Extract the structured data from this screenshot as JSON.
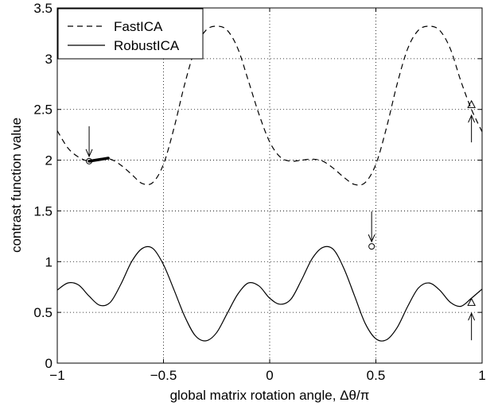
{
  "chart_data": {
    "type": "line",
    "title": "",
    "xlabel": "global matrix rotation angle, Δθ/π",
    "ylabel": "contrast function value",
    "xlim": [
      -1,
      1
    ],
    "ylim": [
      0,
      3.5
    ],
    "xticks": [
      -1,
      -0.5,
      0,
      0.5,
      1
    ],
    "xtick_labels": [
      "−1",
      "−0.5",
      "0",
      "0.5",
      "1"
    ],
    "yticks": [
      0,
      0.5,
      1,
      1.5,
      2,
      2.5,
      3,
      3.5
    ],
    "ytick_labels": [
      "0",
      "0.5",
      "1",
      "1.5",
      "2",
      "2.5",
      "3",
      "3.5"
    ],
    "grid": true,
    "legend": "top-left",
    "series": [
      {
        "name": "FastICA",
        "style": "dashed",
        "x": [
          -1.0,
          -0.95,
          -0.9,
          -0.85,
          -0.8,
          -0.75,
          -0.7,
          -0.65,
          -0.6,
          -0.55,
          -0.5,
          -0.45,
          -0.4,
          -0.35,
          -0.3,
          -0.25,
          -0.2,
          -0.15,
          -0.1,
          -0.05,
          0.0,
          0.05,
          0.1,
          0.15,
          0.2,
          0.25,
          0.3,
          0.35,
          0.4,
          0.45,
          0.5,
          0.55,
          0.6,
          0.65,
          0.7,
          0.75,
          0.8,
          0.85,
          0.9,
          0.95,
          1.0
        ],
        "y": [
          2.29,
          2.12,
          2.03,
          1.99,
          2.01,
          2.01,
          1.95,
          1.86,
          1.77,
          1.78,
          1.96,
          2.32,
          2.75,
          3.1,
          3.28,
          3.32,
          3.28,
          3.1,
          2.78,
          2.45,
          2.18,
          2.03,
          1.99,
          2.0,
          2.01,
          1.99,
          1.92,
          1.83,
          1.76,
          1.78,
          1.96,
          2.32,
          2.75,
          3.1,
          3.28,
          3.32,
          3.28,
          3.1,
          2.78,
          2.5,
          2.28
        ]
      },
      {
        "name": "RobustICA",
        "style": "solid",
        "x": [
          -1.0,
          -0.95,
          -0.9,
          -0.85,
          -0.8,
          -0.75,
          -0.7,
          -0.65,
          -0.6,
          -0.55,
          -0.5,
          -0.45,
          -0.4,
          -0.35,
          -0.3,
          -0.25,
          -0.2,
          -0.15,
          -0.1,
          -0.05,
          0.0,
          0.05,
          0.1,
          0.15,
          0.2,
          0.25,
          0.3,
          0.35,
          0.4,
          0.45,
          0.5,
          0.55,
          0.6,
          0.65,
          0.7,
          0.75,
          0.8,
          0.85,
          0.9,
          0.95,
          1.0
        ],
        "y": [
          0.72,
          0.79,
          0.77,
          0.66,
          0.57,
          0.6,
          0.78,
          1.0,
          1.13,
          1.13,
          0.97,
          0.72,
          0.46,
          0.27,
          0.22,
          0.3,
          0.49,
          0.68,
          0.79,
          0.76,
          0.64,
          0.58,
          0.63,
          0.82,
          1.03,
          1.14,
          1.12,
          0.93,
          0.66,
          0.39,
          0.24,
          0.23,
          0.35,
          0.56,
          0.74,
          0.79,
          0.72,
          0.6,
          0.56,
          0.64,
          0.73
        ]
      }
    ],
    "annotations": [
      {
        "kind": "arrow-down",
        "x": -0.85,
        "y": 1.99
      },
      {
        "kind": "circle",
        "x": -0.85,
        "y": 1.99
      },
      {
        "kind": "thick-segment",
        "x": [
          -0.85,
          -0.76
        ],
        "y": [
          1.99,
          2.02
        ]
      },
      {
        "kind": "arrow-up",
        "x": 0.95,
        "y": 2.52
      },
      {
        "kind": "triangle",
        "x": 0.95,
        "y": 2.55
      },
      {
        "kind": "arrow-down",
        "x": 0.48,
        "y": 1.15
      },
      {
        "kind": "circle",
        "x": 0.48,
        "y": 1.15
      },
      {
        "kind": "arrow-up",
        "x": 0.95,
        "y": 0.57
      },
      {
        "kind": "triangle",
        "x": 0.95,
        "y": 0.6
      }
    ]
  }
}
